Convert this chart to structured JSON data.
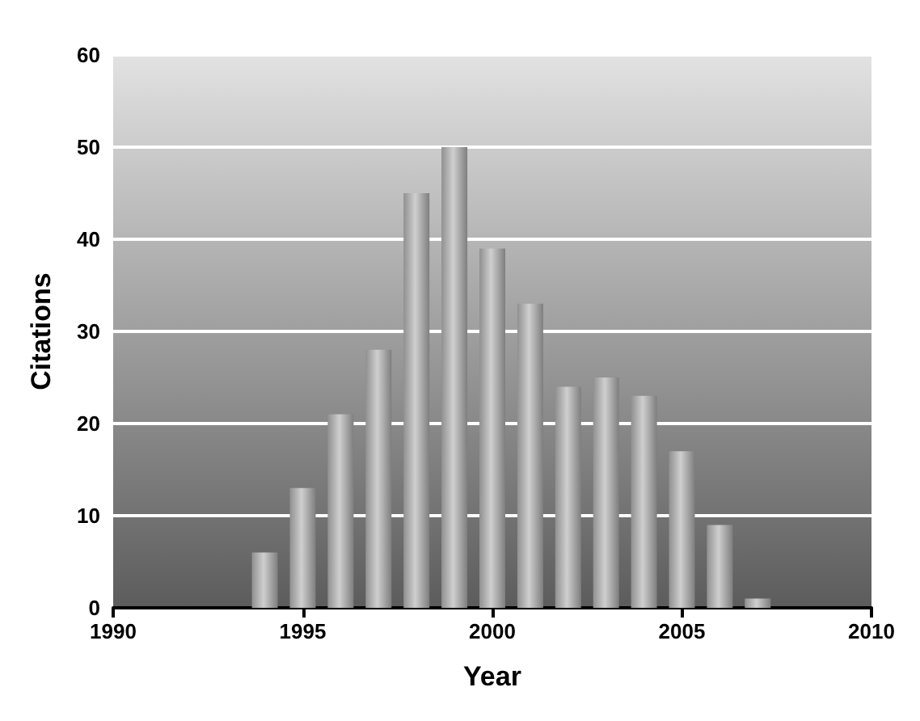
{
  "chart_data": {
    "type": "bar",
    "xlabel": "Year",
    "ylabel": "Citations",
    "x": [
      1994,
      1995,
      1996,
      1997,
      1998,
      1999,
      2000,
      2001,
      2002,
      2003,
      2004,
      2005,
      2006,
      2007
    ],
    "values": [
      6,
      13,
      21,
      28,
      45,
      50,
      39,
      33,
      24,
      25,
      23,
      17,
      9,
      1
    ],
    "color": "#b4b4b4",
    "xlim": [
      1990,
      2010
    ],
    "xticks": [
      1990,
      1995,
      2000,
      2005,
      2010
    ],
    "ylim": [
      0,
      60
    ],
    "yticks": [
      0,
      10,
      20,
      30,
      40,
      50,
      60
    ],
    "grid": "y"
  }
}
